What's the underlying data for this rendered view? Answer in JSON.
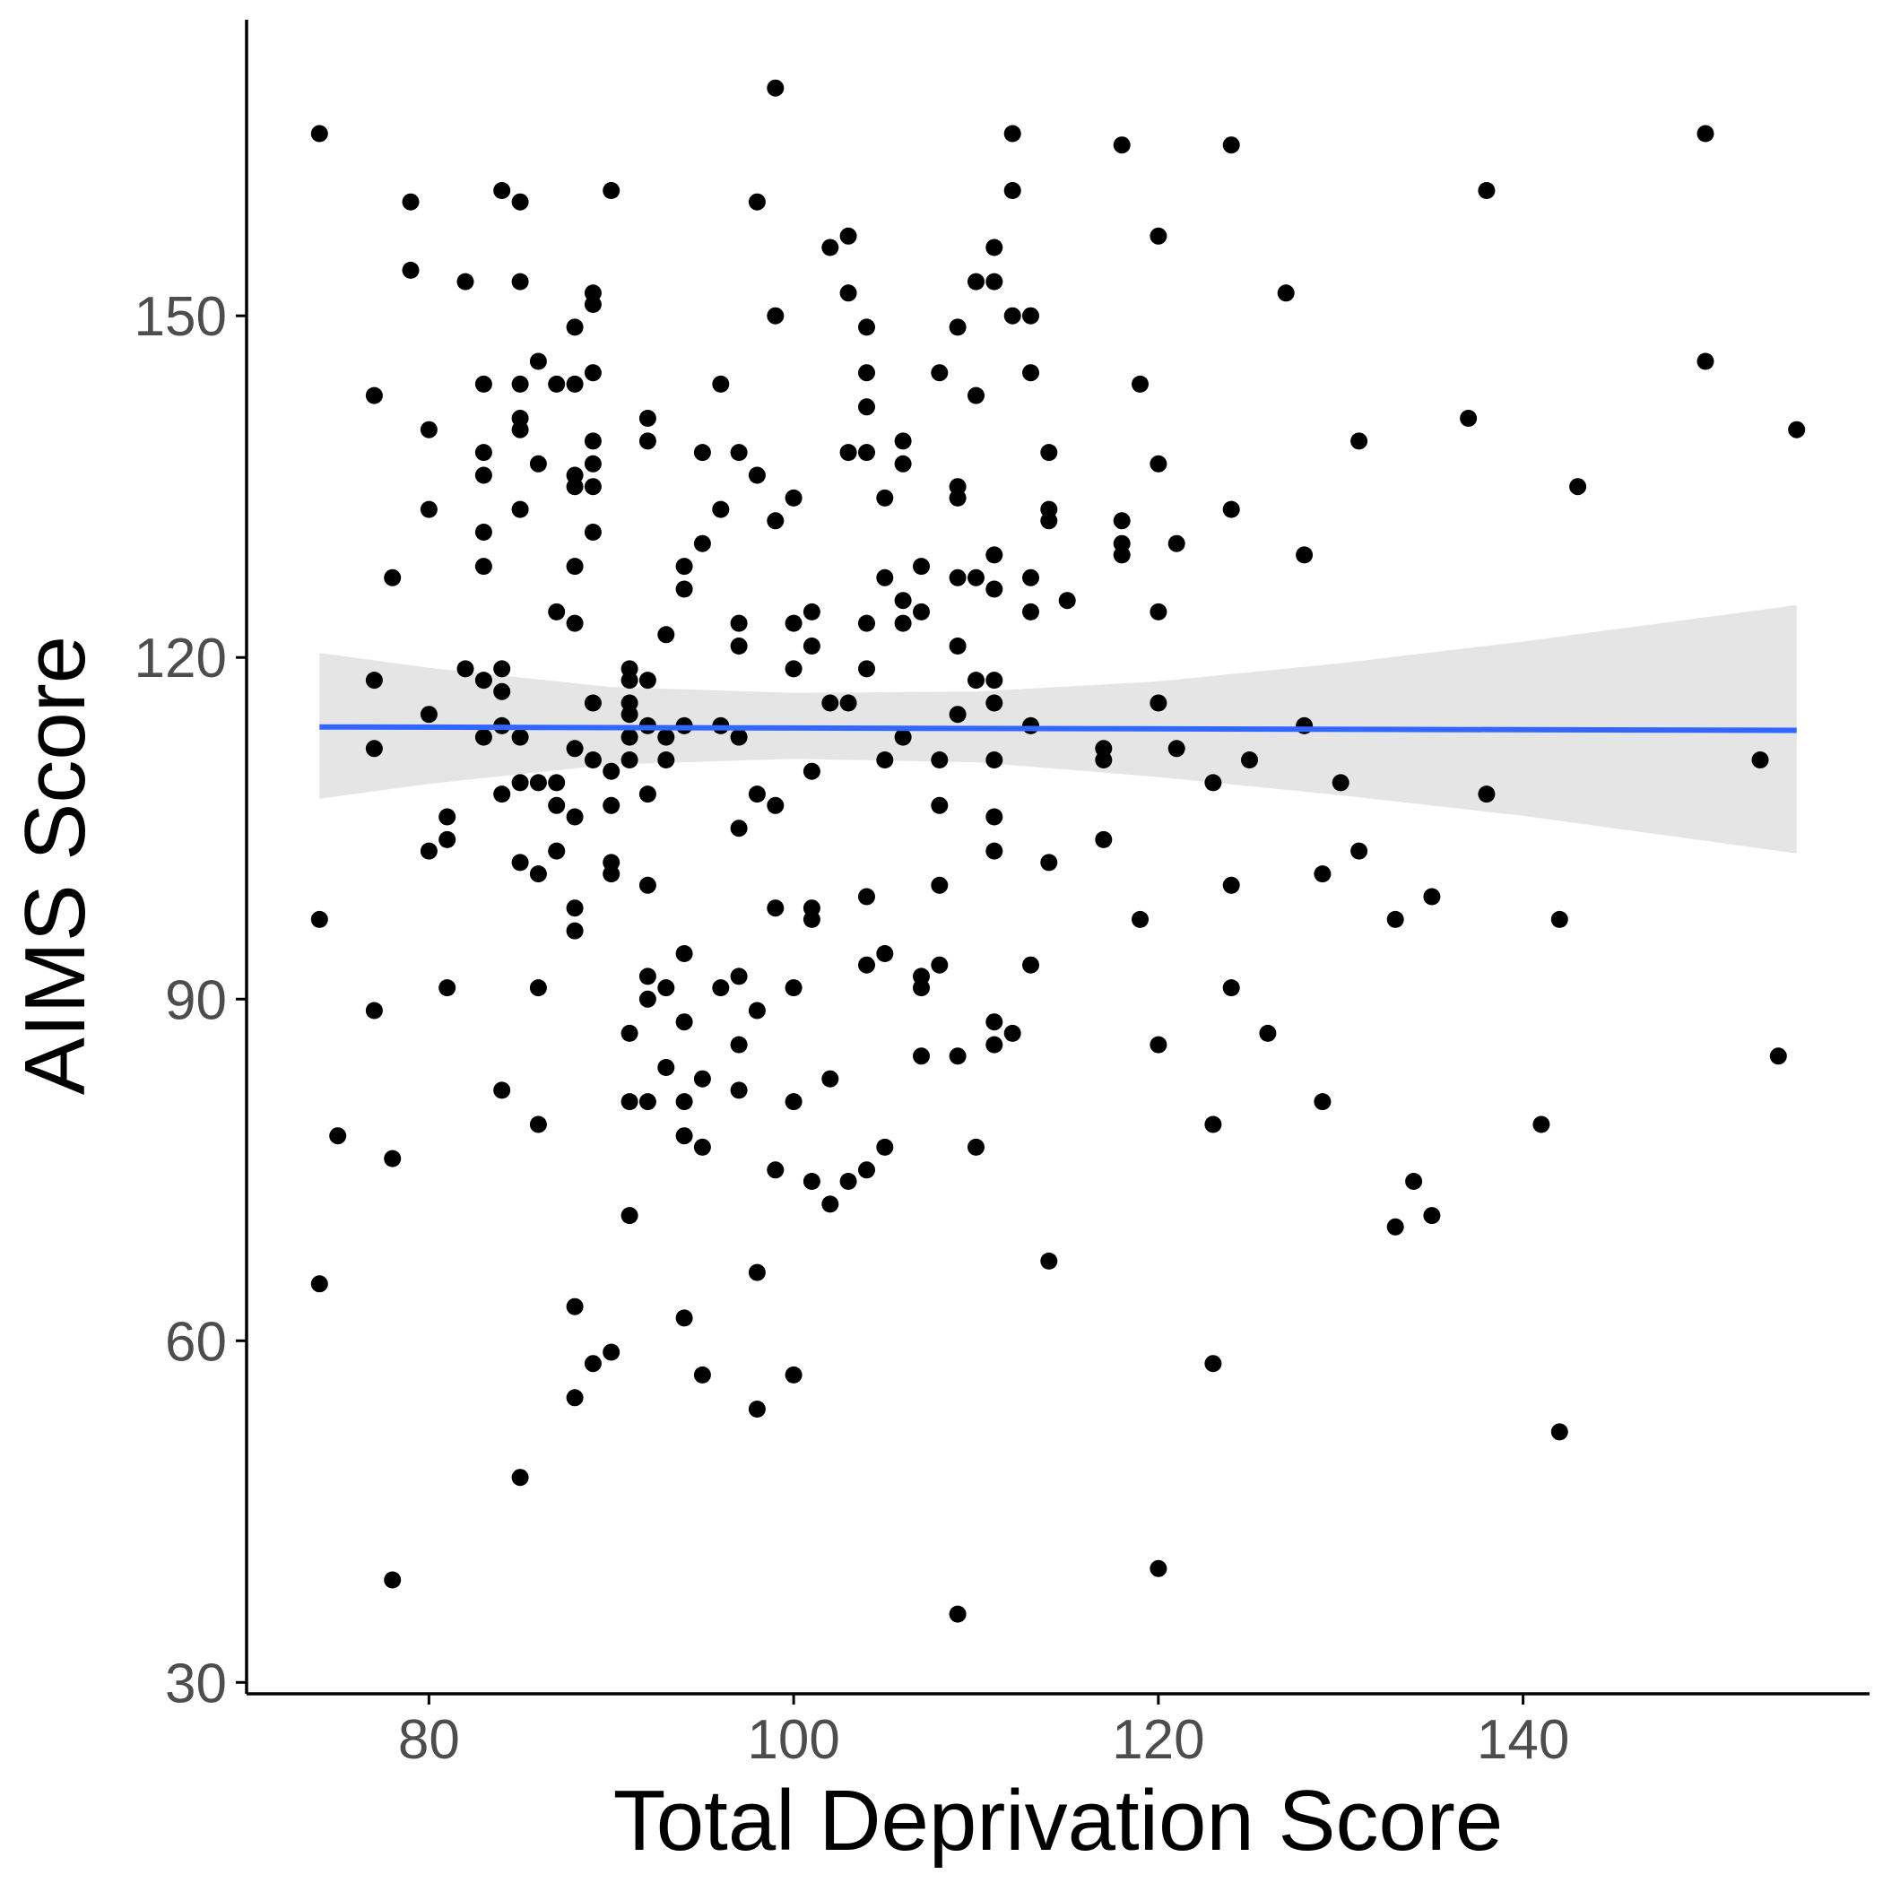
{
  "chart_data": {
    "type": "scatter",
    "title": "",
    "xlabel": "Total Deprivation Score",
    "ylabel": "AIMS Score",
    "xlim": [
      70,
      159
    ],
    "ylim": [
      29,
      176
    ],
    "x_ticks": [
      80,
      100,
      120,
      140
    ],
    "y_ticks": [
      30,
      60,
      90,
      120,
      150
    ],
    "grid": false,
    "legend": "none",
    "colors": {
      "points": "#000000",
      "fit_line": "#3366FF",
      "confidence_band": "#d4d4d4",
      "tick_label": "#4d4d4d"
    },
    "fit": {
      "method": "linear",
      "line": [
        [
          74,
          113.9
        ],
        [
          155,
          113.6
        ]
      ],
      "band": [
        {
          "x": 74,
          "lower": 107.6,
          "upper": 120.4
        },
        {
          "x": 80,
          "lower": 108.9,
          "upper": 119.1
        },
        {
          "x": 90,
          "lower": 110.6,
          "upper": 117.4
        },
        {
          "x": 100,
          "lower": 111.1,
          "upper": 116.9
        },
        {
          "x": 110,
          "lower": 110.8,
          "upper": 117.0
        },
        {
          "x": 120,
          "lower": 109.5,
          "upper": 117.9
        },
        {
          "x": 130,
          "lower": 107.9,
          "upper": 119.5
        },
        {
          "x": 140,
          "lower": 106.1,
          "upper": 121.4
        },
        {
          "x": 155,
          "lower": 102.8,
          "upper": 124.6
        }
      ]
    },
    "points": [
      [
        74,
        166
      ],
      [
        74,
        97
      ],
      [
        74,
        65
      ],
      [
        75,
        78
      ],
      [
        77,
        143
      ],
      [
        77,
        118
      ],
      [
        77,
        112
      ],
      [
        77,
        89
      ],
      [
        78,
        127
      ],
      [
        78,
        76
      ],
      [
        78,
        39
      ],
      [
        79,
        160
      ],
      [
        79,
        154
      ],
      [
        80,
        140
      ],
      [
        80,
        133
      ],
      [
        80,
        115
      ],
      [
        80,
        103
      ],
      [
        81,
        106
      ],
      [
        81,
        104
      ],
      [
        81,
        91
      ],
      [
        82,
        153
      ],
      [
        82,
        119
      ],
      [
        83,
        144
      ],
      [
        83,
        138
      ],
      [
        83,
        136
      ],
      [
        83,
        131
      ],
      [
        83,
        128
      ],
      [
        83,
        118
      ],
      [
        83,
        113
      ],
      [
        84,
        161
      ],
      [
        84,
        119
      ],
      [
        84,
        117
      ],
      [
        84,
        114
      ],
      [
        84,
        108
      ],
      [
        84,
        82
      ],
      [
        85,
        160
      ],
      [
        85,
        153
      ],
      [
        85,
        144
      ],
      [
        85,
        141
      ],
      [
        85,
        140
      ],
      [
        85,
        133
      ],
      [
        85,
        113
      ],
      [
        85,
        109
      ],
      [
        85,
        102
      ],
      [
        85,
        48
      ],
      [
        86,
        146
      ],
      [
        86,
        137
      ],
      [
        86,
        109
      ],
      [
        86,
        101
      ],
      [
        86,
        91
      ],
      [
        86,
        79
      ],
      [
        87,
        144
      ],
      [
        87,
        124
      ],
      [
        87,
        109
      ],
      [
        87,
        107
      ],
      [
        87,
        103
      ],
      [
        88,
        149
      ],
      [
        88,
        144
      ],
      [
        88,
        136
      ],
      [
        88,
        135
      ],
      [
        88,
        128
      ],
      [
        88,
        123
      ],
      [
        88,
        112
      ],
      [
        88,
        106
      ],
      [
        88,
        98
      ],
      [
        88,
        96
      ],
      [
        88,
        63
      ],
      [
        88,
        55
      ],
      [
        89,
        152
      ],
      [
        89,
        151
      ],
      [
        89,
        145
      ],
      [
        89,
        139
      ],
      [
        89,
        137
      ],
      [
        89,
        135
      ],
      [
        89,
        131
      ],
      [
        89,
        116
      ],
      [
        89,
        111
      ],
      [
        89,
        58
      ],
      [
        90,
        161
      ],
      [
        90,
        110
      ],
      [
        90,
        107
      ],
      [
        90,
        102
      ],
      [
        90,
        101
      ],
      [
        90,
        59
      ],
      [
        91,
        119
      ],
      [
        91,
        118
      ],
      [
        91,
        116
      ],
      [
        91,
        115
      ],
      [
        91,
        113
      ],
      [
        91,
        111
      ],
      [
        91,
        87
      ],
      [
        91,
        81
      ],
      [
        91,
        71
      ],
      [
        92,
        141
      ],
      [
        92,
        139
      ],
      [
        92,
        118
      ],
      [
        92,
        114
      ],
      [
        92,
        108
      ],
      [
        92,
        100
      ],
      [
        92,
        92
      ],
      [
        92,
        90
      ],
      [
        92,
        81
      ],
      [
        93,
        122
      ],
      [
        93,
        113
      ],
      [
        93,
        111
      ],
      [
        93,
        91
      ],
      [
        93,
        84
      ],
      [
        94,
        128
      ],
      [
        94,
        126
      ],
      [
        94,
        114
      ],
      [
        94,
        94
      ],
      [
        94,
        88
      ],
      [
        94,
        81
      ],
      [
        94,
        78
      ],
      [
        94,
        62
      ],
      [
        95,
        138
      ],
      [
        95,
        130
      ],
      [
        95,
        83
      ],
      [
        95,
        77
      ],
      [
        95,
        57
      ],
      [
        96,
        144
      ],
      [
        96,
        133
      ],
      [
        96,
        114
      ],
      [
        96,
        91
      ],
      [
        97,
        138
      ],
      [
        97,
        123
      ],
      [
        97,
        121
      ],
      [
        97,
        113
      ],
      [
        97,
        105
      ],
      [
        97,
        92
      ],
      [
        97,
        86
      ],
      [
        97,
        82
      ],
      [
        98,
        160
      ],
      [
        98,
        136
      ],
      [
        98,
        108
      ],
      [
        98,
        89
      ],
      [
        98,
        66
      ],
      [
        98,
        54
      ],
      [
        99,
        170
      ],
      [
        99,
        150
      ],
      [
        99,
        132
      ],
      [
        99,
        107
      ],
      [
        99,
        98
      ],
      [
        99,
        75
      ],
      [
        100,
        134
      ],
      [
        100,
        123
      ],
      [
        100,
        119
      ],
      [
        100,
        91
      ],
      [
        100,
        81
      ],
      [
        100,
        57
      ],
      [
        101,
        124
      ],
      [
        101,
        121
      ],
      [
        101,
        110
      ],
      [
        101,
        98
      ],
      [
        101,
        97
      ],
      [
        101,
        74
      ],
      [
        102,
        156
      ],
      [
        102,
        116
      ],
      [
        102,
        83
      ],
      [
        102,
        72
      ],
      [
        103,
        157
      ],
      [
        103,
        152
      ],
      [
        103,
        138
      ],
      [
        103,
        116
      ],
      [
        103,
        74
      ],
      [
        104,
        149
      ],
      [
        104,
        145
      ],
      [
        104,
        142
      ],
      [
        104,
        138
      ],
      [
        104,
        123
      ],
      [
        104,
        119
      ],
      [
        104,
        99
      ],
      [
        104,
        93
      ],
      [
        104,
        75
      ],
      [
        105,
        134
      ],
      [
        105,
        127
      ],
      [
        105,
        111
      ],
      [
        105,
        94
      ],
      [
        105,
        77
      ],
      [
        106,
        139
      ],
      [
        106,
        137
      ],
      [
        106,
        125
      ],
      [
        106,
        123
      ],
      [
        106,
        113
      ],
      [
        107,
        128
      ],
      [
        107,
        124
      ],
      [
        107,
        92
      ],
      [
        107,
        91
      ],
      [
        107,
        85
      ],
      [
        108,
        145
      ],
      [
        108,
        111
      ],
      [
        108,
        107
      ],
      [
        108,
        100
      ],
      [
        108,
        93
      ],
      [
        109,
        149
      ],
      [
        109,
        135
      ],
      [
        109,
        134
      ],
      [
        109,
        127
      ],
      [
        109,
        121
      ],
      [
        109,
        115
      ],
      [
        109,
        85
      ],
      [
        109,
        36
      ],
      [
        110,
        153
      ],
      [
        110,
        143
      ],
      [
        110,
        127
      ],
      [
        110,
        118
      ],
      [
        110,
        77
      ],
      [
        111,
        156
      ],
      [
        111,
        153
      ],
      [
        111,
        129
      ],
      [
        111,
        126
      ],
      [
        111,
        118
      ],
      [
        111,
        116
      ],
      [
        111,
        111
      ],
      [
        111,
        106
      ],
      [
        111,
        103
      ],
      [
        111,
        88
      ],
      [
        111,
        86
      ],
      [
        112,
        166
      ],
      [
        112,
        161
      ],
      [
        112,
        150
      ],
      [
        112,
        87
      ],
      [
        113,
        150
      ],
      [
        113,
        145
      ],
      [
        113,
        127
      ],
      [
        113,
        124
      ],
      [
        113,
        114
      ],
      [
        113,
        93
      ],
      [
        114,
        138
      ],
      [
        114,
        133
      ],
      [
        114,
        132
      ],
      [
        114,
        102
      ],
      [
        114,
        67
      ],
      [
        115,
        125
      ],
      [
        117,
        112
      ],
      [
        117,
        111
      ],
      [
        117,
        104
      ],
      [
        118,
        165
      ],
      [
        118,
        132
      ],
      [
        118,
        130
      ],
      [
        118,
        129
      ],
      [
        119,
        144
      ],
      [
        119,
        97
      ],
      [
        120,
        157
      ],
      [
        120,
        137
      ],
      [
        120,
        124
      ],
      [
        120,
        116
      ],
      [
        120,
        86
      ],
      [
        120,
        40
      ],
      [
        121,
        130
      ],
      [
        121,
        112
      ],
      [
        123,
        109
      ],
      [
        123,
        79
      ],
      [
        123,
        58
      ],
      [
        124,
        165
      ],
      [
        124,
        133
      ],
      [
        124,
        100
      ],
      [
        124,
        91
      ],
      [
        125,
        111
      ],
      [
        126,
        87
      ],
      [
        127,
        152
      ],
      [
        128,
        129
      ],
      [
        128,
        114
      ],
      [
        129,
        101
      ],
      [
        129,
        81
      ],
      [
        130,
        109
      ],
      [
        131,
        139
      ],
      [
        131,
        103
      ],
      [
        133,
        97
      ],
      [
        133,
        70
      ],
      [
        134,
        74
      ],
      [
        135,
        99
      ],
      [
        135,
        71
      ],
      [
        137,
        141
      ],
      [
        138,
        161
      ],
      [
        138,
        108
      ],
      [
        141,
        79
      ],
      [
        142,
        97
      ],
      [
        142,
        52
      ],
      [
        143,
        135
      ],
      [
        150,
        166
      ],
      [
        150,
        146
      ],
      [
        153,
        111
      ],
      [
        154,
        85
      ],
      [
        155,
        140
      ]
    ]
  }
}
